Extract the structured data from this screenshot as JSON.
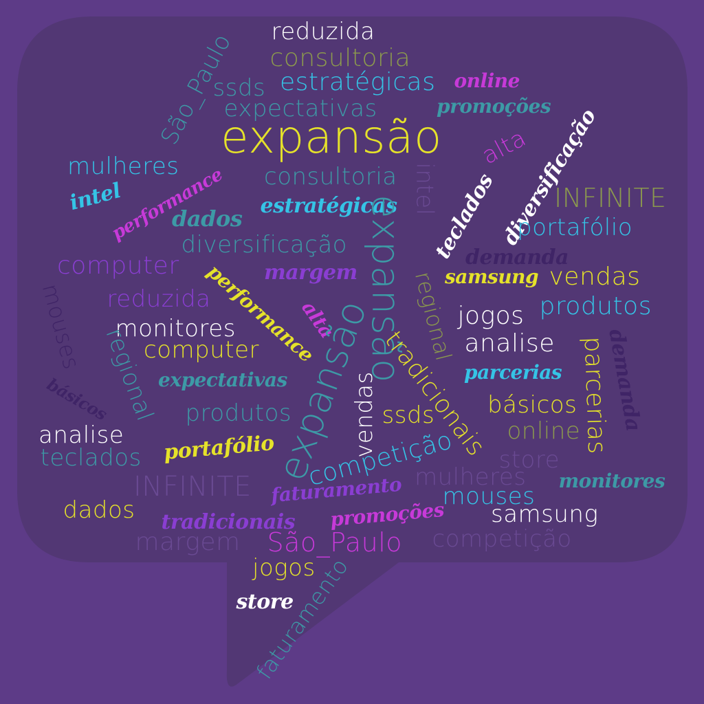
{
  "colors": {
    "background": "#5d3b87",
    "bubble": "#523774",
    "white": "#ffffff",
    "yellow": "#e5e22a",
    "cyan": "#35c4e6",
    "teal": "#3d9aa6",
    "olive": "#8c9a4d",
    "magenta": "#c73ad8",
    "violet": "#8a3ed2",
    "darkpurple": "#3f2466",
    "mutedpurple": "#6a4a93"
  },
  "words": [
    {
      "text": "reduzida",
      "color": "white"
    },
    {
      "text": "consultoria",
      "color": "olive"
    },
    {
      "text": "estratégicas",
      "color": "cyan"
    },
    {
      "text": "ssds",
      "color": "teal"
    },
    {
      "text": "online",
      "color": "magenta"
    },
    {
      "text": "expectativas",
      "color": "teal"
    },
    {
      "text": "promoções",
      "color": "teal"
    },
    {
      "text": "São_Paulo",
      "color": "teal"
    },
    {
      "text": "expansão",
      "color": "yellow"
    },
    {
      "text": "alta",
      "color": "magenta"
    },
    {
      "text": "diversificação",
      "color": "white"
    },
    {
      "text": "mulheres",
      "color": "cyan"
    },
    {
      "text": "performance",
      "color": "magenta"
    },
    {
      "text": "consultoria",
      "color": "teal"
    },
    {
      "text": "intel",
      "color": "mutedpurple"
    },
    {
      "text": "INFINITE",
      "color": "olive"
    },
    {
      "text": "intel",
      "color": "cyan"
    },
    {
      "text": "teclados",
      "color": "white"
    },
    {
      "text": "dados",
      "color": "teal"
    },
    {
      "text": "estratégicas",
      "color": "cyan"
    },
    {
      "text": "portafólio",
      "color": "cyan"
    },
    {
      "text": "expansão",
      "color": "teal"
    },
    {
      "text": "diversificação",
      "color": "teal"
    },
    {
      "text": "computer",
      "color": "violet"
    },
    {
      "text": "demanda",
      "color": "darkpurple"
    },
    {
      "text": "margem",
      "color": "violet"
    },
    {
      "text": "performance",
      "color": "yellow"
    },
    {
      "text": "samsung",
      "color": "yellow"
    },
    {
      "text": "vendas",
      "color": "yellow"
    },
    {
      "text": "regional",
      "color": "olive"
    },
    {
      "text": "mouses",
      "color": "darkpurple"
    },
    {
      "text": "reduzida",
      "color": "violet"
    },
    {
      "text": "alta",
      "color": "magenta"
    },
    {
      "text": "produtos",
      "color": "cyan"
    },
    {
      "text": "jogos",
      "color": "white"
    },
    {
      "text": "monitores",
      "color": "white"
    },
    {
      "text": "demanda",
      "color": "darkpurple"
    },
    {
      "text": "regional",
      "color": "teal"
    },
    {
      "text": "analise",
      "color": "white"
    },
    {
      "text": "computer",
      "color": "yellow"
    },
    {
      "text": "tradicionais",
      "color": "yellow"
    },
    {
      "text": "parcerias",
      "color": "yellow"
    },
    {
      "text": "expansão",
      "color": "teal"
    },
    {
      "text": "parcerias",
      "color": "cyan"
    },
    {
      "text": "expectativas",
      "color": "teal"
    },
    {
      "text": "básicos",
      "color": "darkpurple"
    },
    {
      "text": "vendas",
      "color": "white"
    },
    {
      "text": "básicos",
      "color": "yellow"
    },
    {
      "text": "produtos",
      "color": "teal"
    },
    {
      "text": "ssds",
      "color": "yellow"
    },
    {
      "text": "online",
      "color": "olive"
    },
    {
      "text": "analise",
      "color": "white"
    },
    {
      "text": "portafólio",
      "color": "yellow"
    },
    {
      "text": "teclados",
      "color": "teal"
    },
    {
      "text": "competição",
      "color": "cyan"
    },
    {
      "text": "store",
      "color": "mutedpurple"
    },
    {
      "text": "mulheres",
      "color": "mutedpurple"
    },
    {
      "text": "INFINITE",
      "color": "mutedpurple"
    },
    {
      "text": "monitores",
      "color": "teal"
    },
    {
      "text": "faturamento",
      "color": "violet"
    },
    {
      "text": "mouses",
      "color": "cyan"
    },
    {
      "text": "dados",
      "color": "yellow"
    },
    {
      "text": "tradicionais",
      "color": "violet"
    },
    {
      "text": "promoções",
      "color": "magenta"
    },
    {
      "text": "samsung",
      "color": "white"
    },
    {
      "text": "margem",
      "color": "mutedpurple"
    },
    {
      "text": "São_Paulo",
      "color": "magenta"
    },
    {
      "text": "competição",
      "color": "mutedpurple"
    },
    {
      "text": "jogos",
      "color": "yellow"
    },
    {
      "text": "faturamento",
      "color": "teal"
    },
    {
      "text": "store",
      "color": "white"
    }
  ]
}
